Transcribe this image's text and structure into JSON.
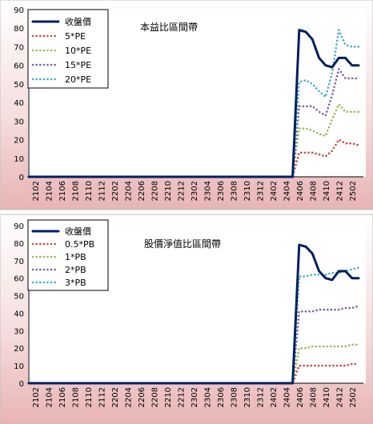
{
  "chart_data": [
    {
      "type": "line",
      "title": "本益比區間帶",
      "ylim": [
        0,
        90
      ],
      "yticks": [
        0,
        10,
        20,
        30,
        40,
        50,
        60,
        70,
        80,
        90
      ],
      "categories": [
        "2101",
        "2102",
        "2103",
        "2104",
        "2105",
        "2106",
        "2107",
        "2108",
        "2109",
        "2110",
        "2111",
        "2112",
        "2201",
        "2202",
        "2203",
        "2204",
        "2205",
        "2206",
        "2207",
        "2208",
        "2209",
        "2210",
        "2211",
        "2212",
        "2301",
        "2302",
        "2303",
        "2304",
        "2305",
        "2306",
        "2307",
        "2308",
        "2309",
        "2310",
        "2311",
        "2312",
        "2401",
        "2402",
        "2403",
        "2404",
        "2405",
        "2406",
        "2407",
        "2408",
        "2409",
        "2410",
        "2411",
        "2412",
        "2501",
        "2502",
        "2503"
      ],
      "xtick_labels": [
        "2102",
        "2104",
        "2106",
        "2108",
        "2110",
        "2112",
        "2202",
        "2204",
        "2206",
        "2208",
        "2210",
        "2212",
        "2302",
        "2304",
        "2306",
        "2308",
        "2310",
        "2312",
        "2402",
        "2404",
        "2406",
        "2408",
        "2410",
        "2412",
        "2502"
      ],
      "grid": false,
      "legend": "top-left",
      "series": [
        {
          "name": "收盤價",
          "color": "#002060",
          "style": "solid",
          "values": [
            0,
            0,
            0,
            0,
            0,
            0,
            0,
            0,
            0,
            0,
            0,
            0,
            0,
            0,
            0,
            0,
            0,
            0,
            0,
            0,
            0,
            0,
            0,
            0,
            0,
            0,
            0,
            0,
            0,
            0,
            0,
            0,
            0,
            0,
            0,
            0,
            0,
            0,
            0,
            0,
            0,
            79,
            78,
            74,
            64,
            60,
            59,
            64,
            64,
            60,
            60
          ]
        },
        {
          "name": "5*PE",
          "color": "#c0504d",
          "style": "dotted",
          "values": [
            0,
            0,
            0,
            0,
            0,
            0,
            0,
            0,
            0,
            0,
            0,
            0,
            0,
            0,
            0,
            0,
            0,
            0,
            0,
            0,
            0,
            0,
            0,
            0,
            0,
            0,
            0,
            0,
            0,
            0,
            0,
            0,
            0,
            0,
            0,
            0,
            0,
            0,
            0,
            0,
            0,
            13,
            13,
            13,
            12,
            11,
            14,
            20,
            18,
            18,
            17
          ]
        },
        {
          "name": "10*PE",
          "color": "#9bbb59",
          "style": "dotted",
          "values": [
            0,
            0,
            0,
            0,
            0,
            0,
            0,
            0,
            0,
            0,
            0,
            0,
            0,
            0,
            0,
            0,
            0,
            0,
            0,
            0,
            0,
            0,
            0,
            0,
            0,
            0,
            0,
            0,
            0,
            0,
            0,
            0,
            0,
            0,
            0,
            0,
            0,
            0,
            0,
            0,
            0,
            26,
            26,
            25,
            23,
            22,
            31,
            39,
            35,
            35,
            35
          ]
        },
        {
          "name": "15*PE",
          "color": "#8064a2",
          "style": "dotted",
          "values": [
            0,
            0,
            0,
            0,
            0,
            0,
            0,
            0,
            0,
            0,
            0,
            0,
            0,
            0,
            0,
            0,
            0,
            0,
            0,
            0,
            0,
            0,
            0,
            0,
            0,
            0,
            0,
            0,
            0,
            0,
            0,
            0,
            0,
            0,
            0,
            0,
            0,
            0,
            0,
            0,
            0,
            38,
            38,
            38,
            35,
            33,
            44,
            58,
            53,
            53,
            53
          ]
        },
        {
          "name": "20*PE",
          "color": "#4bacc6",
          "style": "dotted",
          "values": [
            0,
            0,
            0,
            0,
            0,
            0,
            0,
            0,
            0,
            0,
            0,
            0,
            0,
            0,
            0,
            0,
            0,
            0,
            0,
            0,
            0,
            0,
            0,
            0,
            0,
            0,
            0,
            0,
            0,
            0,
            0,
            0,
            0,
            0,
            0,
            0,
            0,
            0,
            0,
            0,
            0,
            51,
            52,
            50,
            46,
            43,
            56,
            79,
            71,
            70,
            70
          ]
        }
      ]
    },
    {
      "type": "line",
      "title": "股價淨值比區間帶",
      "ylim": [
        0,
        90
      ],
      "yticks": [
        0,
        10,
        20,
        30,
        40,
        50,
        60,
        70,
        80,
        90
      ],
      "categories": [
        "2101",
        "2102",
        "2103",
        "2104",
        "2105",
        "2106",
        "2107",
        "2108",
        "2109",
        "2110",
        "2111",
        "2112",
        "2201",
        "2202",
        "2203",
        "2204",
        "2205",
        "2206",
        "2207",
        "2208",
        "2209",
        "2210",
        "2211",
        "2212",
        "2301",
        "2302",
        "2303",
        "2304",
        "2305",
        "2306",
        "2307",
        "2308",
        "2309",
        "2310",
        "2311",
        "2312",
        "2401",
        "2402",
        "2403",
        "2404",
        "2405",
        "2406",
        "2407",
        "2408",
        "2409",
        "2410",
        "2411",
        "2412",
        "2501",
        "2502",
        "2503"
      ],
      "xtick_labels": [
        "2102",
        "2104",
        "2106",
        "2108",
        "2110",
        "2112",
        "2202",
        "2204",
        "2206",
        "2208",
        "2210",
        "2212",
        "2302",
        "2304",
        "2306",
        "2308",
        "2310",
        "2312",
        "2402",
        "2404",
        "2406",
        "2408",
        "2410",
        "2412",
        "2502"
      ],
      "grid": false,
      "legend": "top-left",
      "series": [
        {
          "name": "收盤價",
          "color": "#002060",
          "style": "solid",
          "values": [
            0,
            0,
            0,
            0,
            0,
            0,
            0,
            0,
            0,
            0,
            0,
            0,
            0,
            0,
            0,
            0,
            0,
            0,
            0,
            0,
            0,
            0,
            0,
            0,
            0,
            0,
            0,
            0,
            0,
            0,
            0,
            0,
            0,
            0,
            0,
            0,
            0,
            0,
            0,
            0,
            0,
            79,
            78,
            74,
            64,
            60,
            59,
            64,
            64,
            60,
            60
          ]
        },
        {
          "name": "0.5*PB",
          "color": "#c0504d",
          "style": "dotted",
          "values": [
            0,
            0,
            0,
            0,
            0,
            0,
            0,
            0,
            0,
            0,
            0,
            0,
            0,
            0,
            0,
            0,
            0,
            0,
            0,
            0,
            0,
            0,
            0,
            0,
            0,
            0,
            0,
            0,
            0,
            0,
            0,
            0,
            0,
            0,
            0,
            0,
            0,
            0,
            0,
            0,
            0,
            10,
            10,
            10,
            10,
            10,
            10,
            10,
            10,
            11,
            11
          ]
        },
        {
          "name": "1*PB",
          "color": "#9bbb59",
          "style": "dotted",
          "values": [
            0,
            0,
            0,
            0,
            0,
            0,
            0,
            0,
            0,
            0,
            0,
            0,
            0,
            0,
            0,
            0,
            0,
            0,
            0,
            0,
            0,
            0,
            0,
            0,
            0,
            0,
            0,
            0,
            0,
            0,
            0,
            0,
            0,
            0,
            0,
            0,
            0,
            0,
            0,
            0,
            0,
            20,
            20,
            21,
            21,
            21,
            21,
            21,
            21,
            22,
            22
          ]
        },
        {
          "name": "2*PB",
          "color": "#8064a2",
          "style": "dotted",
          "values": [
            0,
            0,
            0,
            0,
            0,
            0,
            0,
            0,
            0,
            0,
            0,
            0,
            0,
            0,
            0,
            0,
            0,
            0,
            0,
            0,
            0,
            0,
            0,
            0,
            0,
            0,
            0,
            0,
            0,
            0,
            0,
            0,
            0,
            0,
            0,
            0,
            0,
            0,
            0,
            0,
            0,
            41,
            41,
            41,
            42,
            42,
            42,
            42,
            43,
            43,
            44
          ]
        },
        {
          "name": "3*PB",
          "color": "#4bacc6",
          "style": "dotted",
          "values": [
            0,
            0,
            0,
            0,
            0,
            0,
            0,
            0,
            0,
            0,
            0,
            0,
            0,
            0,
            0,
            0,
            0,
            0,
            0,
            0,
            0,
            0,
            0,
            0,
            0,
            0,
            0,
            0,
            0,
            0,
            0,
            0,
            0,
            0,
            0,
            0,
            0,
            0,
            0,
            0,
            0,
            61,
            61,
            62,
            62,
            62,
            63,
            63,
            64,
            65,
            66
          ]
        }
      ]
    }
  ]
}
